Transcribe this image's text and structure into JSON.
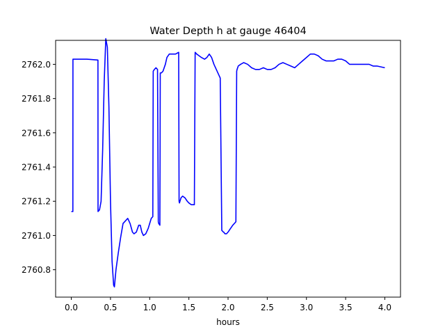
{
  "chart_data": {
    "type": "line",
    "title": "Water Depth h at gauge 46404",
    "xlabel": "hours",
    "ylabel": "",
    "xlim": [
      -0.2,
      4.2
    ],
    "ylim": [
      2760.64,
      2762.14
    ],
    "xticks": [
      0.0,
      0.5,
      1.0,
      1.5,
      2.0,
      2.5,
      3.0,
      3.5,
      4.0
    ],
    "xtick_labels": [
      "0.0",
      "0.5",
      "1.0",
      "1.5",
      "2.0",
      "2.5",
      "3.0",
      "3.5",
      "4.0"
    ],
    "yticks": [
      2760.8,
      2761.0,
      2761.2,
      2761.4,
      2761.6,
      2761.8,
      2762.0
    ],
    "ytick_labels": [
      "2760.8",
      "2761.0",
      "2761.2",
      "2761.4",
      "2761.6",
      "2761.8",
      "2762.0"
    ],
    "grid": false,
    "series": [
      {
        "color": "#0000ff",
        "x": [
          0.0,
          0.02,
          0.021,
          0.1,
          0.2,
          0.34,
          0.341,
          0.36,
          0.38,
          0.4,
          0.42,
          0.44,
          0.46,
          0.48,
          0.5,
          0.52,
          0.54,
          0.55,
          0.57,
          0.6,
          0.63,
          0.66,
          0.7,
          0.72,
          0.75,
          0.78,
          0.8,
          0.83,
          0.86,
          0.88,
          0.9,
          0.92,
          0.95,
          0.98,
          1.0,
          1.02,
          1.04,
          1.045,
          1.06,
          1.08,
          1.1,
          1.11,
          1.115,
          1.13,
          1.135,
          1.15,
          1.17,
          1.2,
          1.22,
          1.25,
          1.28,
          1.3,
          1.33,
          1.37,
          1.375,
          1.38,
          1.4,
          1.42,
          1.45,
          1.48,
          1.5,
          1.53,
          1.56,
          1.57,
          1.58,
          1.6,
          1.63,
          1.66,
          1.7,
          1.73,
          1.76,
          1.79,
          1.82,
          1.85,
          1.88,
          1.9,
          1.92,
          1.94,
          1.945,
          1.96,
          1.98,
          2.0,
          2.03,
          2.06,
          2.1,
          2.11,
          2.115,
          2.13,
          2.16,
          2.2,
          2.25,
          2.3,
          2.35,
          2.4,
          2.45,
          2.5,
          2.55,
          2.6,
          2.65,
          2.7,
          2.75,
          2.8,
          2.85,
          2.9,
          2.95,
          3.0,
          3.05,
          3.1,
          3.15,
          3.2,
          3.25,
          3.3,
          3.35,
          3.4,
          3.45,
          3.5,
          3.55,
          3.6,
          3.65,
          3.7,
          3.75,
          3.8,
          3.85,
          3.9,
          3.95,
          4.0
        ],
        "y": [
          2761.14,
          2761.14,
          2762.03,
          2762.03,
          2762.03,
          2762.025,
          2761.14,
          2761.15,
          2761.2,
          2761.5,
          2761.9,
          2762.15,
          2762.1,
          2761.75,
          2761.2,
          2760.85,
          2760.71,
          2760.7,
          2760.8,
          2760.9,
          2760.99,
          2761.07,
          2761.09,
          2761.1,
          2761.07,
          2761.02,
          2761.01,
          2761.02,
          2761.06,
          2761.06,
          2761.02,
          2761.0,
          2761.01,
          2761.04,
          2761.07,
          2761.1,
          2761.11,
          2761.96,
          2761.97,
          2761.98,
          2761.97,
          2761.08,
          2761.07,
          2761.06,
          2761.95,
          2761.95,
          2761.96,
          2762.0,
          2762.04,
          2762.06,
          2762.06,
          2762.06,
          2762.06,
          2762.07,
          2761.2,
          2761.19,
          2761.22,
          2761.23,
          2761.22,
          2761.2,
          2761.19,
          2761.18,
          2761.18,
          2761.18,
          2762.07,
          2762.06,
          2762.05,
          2762.04,
          2762.03,
          2762.04,
          2762.06,
          2762.04,
          2762.0,
          2761.97,
          2761.94,
          2761.92,
          2761.03,
          2761.02,
          2761.02,
          2761.01,
          2761.01,
          2761.02,
          2761.04,
          2761.06,
          2761.08,
          2761.96,
          2761.97,
          2761.99,
          2762.0,
          2762.01,
          2762.0,
          2761.98,
          2761.97,
          2761.97,
          2761.98,
          2761.97,
          2761.97,
          2761.98,
          2762.0,
          2762.01,
          2762.0,
          2761.99,
          2761.98,
          2762.0,
          2762.02,
          2762.04,
          2762.06,
          2762.06,
          2762.05,
          2762.03,
          2762.02,
          2762.02,
          2762.02,
          2762.03,
          2762.03,
          2762.02,
          2762.0,
          2762.0,
          2762.0,
          2762.0,
          2762.0,
          2762.0,
          2761.99,
          2761.99,
          2761.985,
          2761.98
        ]
      }
    ]
  }
}
